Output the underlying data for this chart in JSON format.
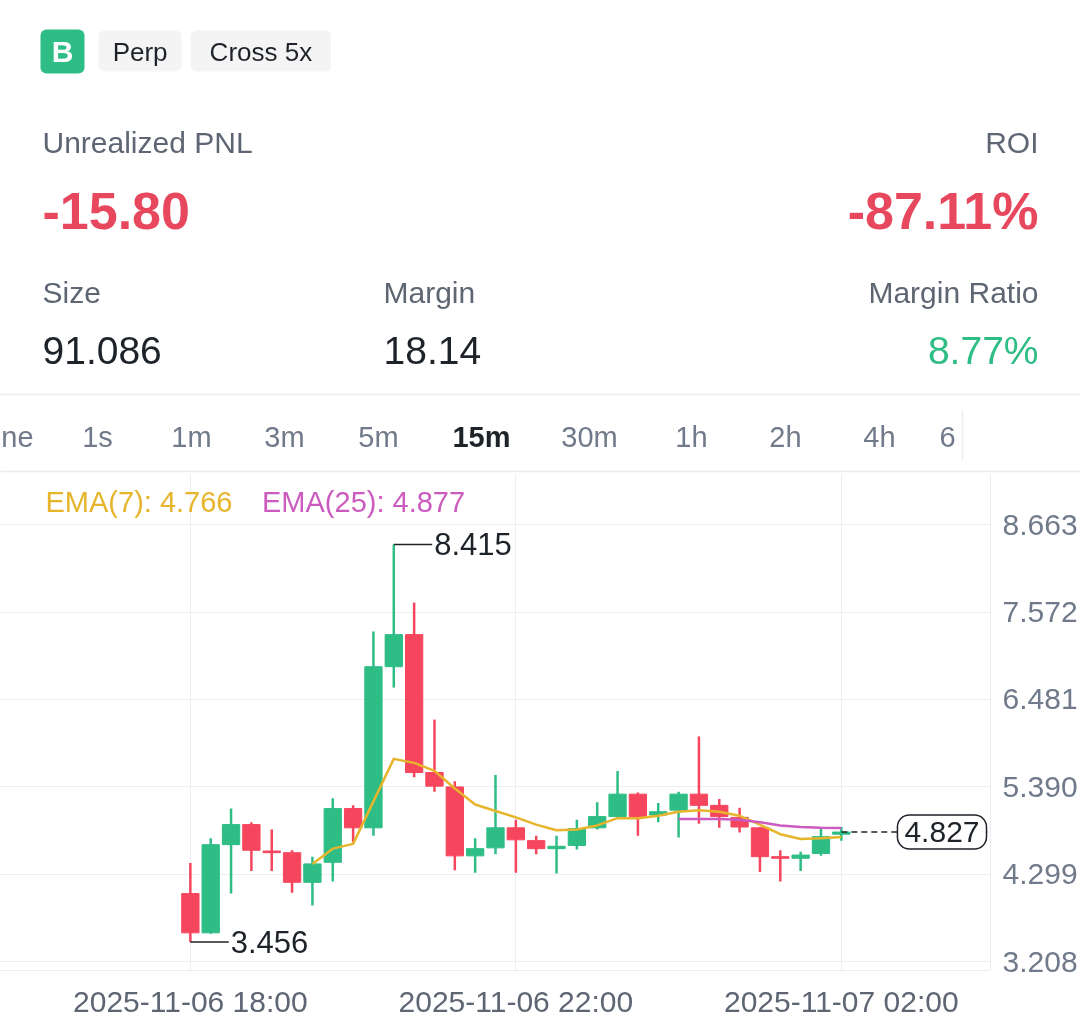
{
  "chart_data": [
    {
      "type": "other",
      "annotations": [
        "B",
        "Perp",
        "Cross 5x",
        "Unrealized PNL",
        "-15.80",
        "ROI",
        "-87.11%",
        "Size",
        "91.086",
        "Margin",
        "18.14",
        "Margin Ratio",
        "8.77%",
        "ne",
        "1s",
        "1m",
        "3m",
        "5m",
        "15m",
        "30m",
        "1h",
        "2h",
        "4h",
        "6"
      ]
    },
    {
      "type": "candlestick",
      "x": [
        "2025-11-06T18:00",
        "2025-11-06T18:15",
        "2025-11-06T18:30",
        "2025-11-06T18:45",
        "2025-11-06T19:00",
        "2025-11-06T19:15",
        "2025-11-06T19:30",
        "2025-11-06T19:45",
        "2025-11-06T20:00",
        "2025-11-06T20:15",
        "2025-11-06T20:30",
        "2025-11-06T20:45",
        "2025-11-06T21:00",
        "2025-11-06T21:15",
        "2025-11-06T21:30",
        "2025-11-06T21:45",
        "2025-11-06T22:00",
        "2025-11-06T22:15",
        "2025-11-06T22:30",
        "2025-11-06T22:45",
        "2025-11-06T23:00",
        "2025-11-06T23:15",
        "2025-11-06T23:30",
        "2025-11-06T23:45",
        "2025-11-07T00:00",
        "2025-11-07T00:15",
        "2025-11-07T00:30",
        "2025-11-07T00:45",
        "2025-11-07T01:00",
        "2025-11-07T01:15",
        "2025-11-07T01:30",
        "2025-11-07T01:45",
        "2025-11-07T02:00"
      ],
      "ohlc": [
        [
          4.06,
          4.44,
          3.456,
          3.57
        ],
        [
          3.57,
          4.75,
          3.56,
          4.67
        ],
        [
          4.67,
          5.12,
          4.06,
          4.92
        ],
        [
          4.92,
          4.95,
          4.34,
          4.6
        ],
        [
          4.59,
          4.86,
          4.34,
          4.57
        ],
        [
          4.57,
          4.6,
          4.07,
          4.2
        ],
        [
          4.2,
          4.52,
          3.91,
          4.43
        ],
        [
          4.45,
          5.25,
          4.21,
          5.12
        ],
        [
          5.12,
          5.16,
          4.7,
          4.88
        ],
        [
          4.88,
          7.33,
          4.78,
          6.89
        ],
        [
          6.89,
          8.415,
          6.63,
          7.29
        ],
        [
          7.29,
          7.69,
          5.51,
          5.57
        ],
        [
          5.57,
          6.23,
          5.33,
          5.4
        ],
        [
          5.39,
          5.46,
          4.35,
          4.53
        ],
        [
          4.53,
          4.75,
          4.32,
          4.62
        ],
        [
          4.63,
          5.54,
          4.55,
          4.88
        ],
        [
          4.88,
          4.98,
          4.32,
          4.73
        ],
        [
          4.72,
          4.78,
          4.55,
          4.62
        ],
        [
          4.62,
          4.78,
          4.31,
          4.65
        ],
        [
          4.66,
          4.98,
          4.61,
          4.87
        ],
        [
          4.88,
          5.2,
          4.86,
          5.02
        ],
        [
          5.02,
          5.59,
          5.0,
          5.3
        ],
        [
          5.3,
          5.32,
          4.78,
          5.02
        ],
        [
          5.04,
          5.19,
          4.95,
          5.08
        ],
        [
          5.1,
          5.33,
          4.76,
          5.3
        ],
        [
          5.3,
          6.02,
          4.93,
          5.16
        ],
        [
          5.16,
          5.24,
          4.88,
          5.02
        ],
        [
          5.01,
          5.13,
          4.82,
          4.89
        ],
        [
          4.88,
          4.89,
          4.33,
          4.52
        ],
        [
          4.52,
          4.6,
          4.21,
          4.5
        ],
        [
          4.5,
          4.58,
          4.34,
          4.54
        ],
        [
          4.56,
          4.87,
          4.53,
          4.77
        ],
        [
          4.8,
          4.89,
          4.72,
          4.827
        ]
      ],
      "colors": [
        "#f6465d",
        "#2ebd85",
        "#2ebd85",
        "#f6465d",
        "#f6465d",
        "#f6465d",
        "#2ebd85",
        "#2ebd85",
        "#f6465d",
        "#2ebd85",
        "#2ebd85",
        "#f6465d",
        "#f6465d",
        "#f6465d",
        "#2ebd85",
        "#2ebd85",
        "#f6465d",
        "#f6465d",
        "#2ebd85",
        "#2ebd85",
        "#2ebd85",
        "#2ebd85",
        "#f6465d",
        "#2ebd85",
        "#2ebd85",
        "#f6465d",
        "#f6465d",
        "#f6465d",
        "#f6465d",
        "#f6465d",
        "#2ebd85",
        "#2ebd85",
        "#2ebd85"
      ],
      "series": [
        {
          "name": "EMA(7): 4.766",
          "type": "line",
          "color": "#e6b52c",
          "x": [
            "2025-11-06T19:30",
            "2025-11-06T19:45",
            "2025-11-06T20:00",
            "2025-11-06T20:15",
            "2025-11-06T20:30",
            "2025-11-06T20:45",
            "2025-11-06T21:00",
            "2025-11-06T21:15",
            "2025-11-06T21:30",
            "2025-11-06T21:45",
            "2025-11-06T22:00",
            "2025-11-06T22:15",
            "2025-11-06T22:30",
            "2025-11-06T22:45",
            "2025-11-06T23:00",
            "2025-11-06T23:15",
            "2025-11-06T23:30",
            "2025-11-06T23:45",
            "2025-11-07T00:00",
            "2025-11-07T00:15",
            "2025-11-07T00:30",
            "2025-11-07T00:45",
            "2025-11-07T01:00",
            "2025-11-07T01:15",
            "2025-11-07T01:30",
            "2025-11-07T01:45",
            "2025-11-07T02:00"
          ],
          "values": [
            4.43,
            4.62,
            4.68,
            5.21,
            5.74,
            5.69,
            5.59,
            5.37,
            5.17,
            5.09,
            5.01,
            4.92,
            4.85,
            4.86,
            4.91,
            5.0,
            5.0,
            5.03,
            5.08,
            5.1,
            5.08,
            5.03,
            4.92,
            4.8,
            4.74,
            4.75,
            4.766
          ]
        },
        {
          "name": "EMA(25): 4.877",
          "type": "line",
          "color": "#cc5bbf",
          "x": [
            "2025-11-07T00:00",
            "2025-11-07T00:15",
            "2025-11-07T00:30",
            "2025-11-07T00:45",
            "2025-11-07T01:00",
            "2025-11-07T01:15",
            "2025-11-07T01:30",
            "2025-11-07T01:45",
            "2025-11-07T02:00"
          ],
          "values": [
            4.99,
            4.99,
            4.99,
            4.98,
            4.95,
            4.91,
            4.89,
            4.88,
            4.877
          ]
        }
      ],
      "xlim": [
        "2025-11-06T15:40",
        "2025-11-07T03:50"
      ],
      "xticks": [
        {
          "value": "2025-11-06T18:00",
          "label": "2025-11-06 18:00"
        },
        {
          "value": "2025-11-06T22:00",
          "label": "2025-11-06 22:00"
        },
        {
          "value": "2025-11-07T02:00",
          "label": "2025-11-07 02:00"
        }
      ],
      "ylim": [
        3.1,
        9.3
      ],
      "yticks": [
        3.208,
        4.299,
        {
          "value": 5.39,
          "label": "5.390"
        },
        6.481,
        7.572,
        8.663
      ],
      "annotations": [
        {
          "text": "8.415",
          "x": "2025-11-06T20:30",
          "y": 8.415
        },
        {
          "text": "3.456",
          "x": "2025-11-06T18:00",
          "y": 3.456
        }
      ],
      "ref_lines": [
        {
          "axis": "y",
          "value": 4.827,
          "label": "4.827",
          "line_style": "dashed",
          "color": "#1e2329"
        }
      ],
      "grid": true,
      "legend": "top left"
    }
  ]
}
